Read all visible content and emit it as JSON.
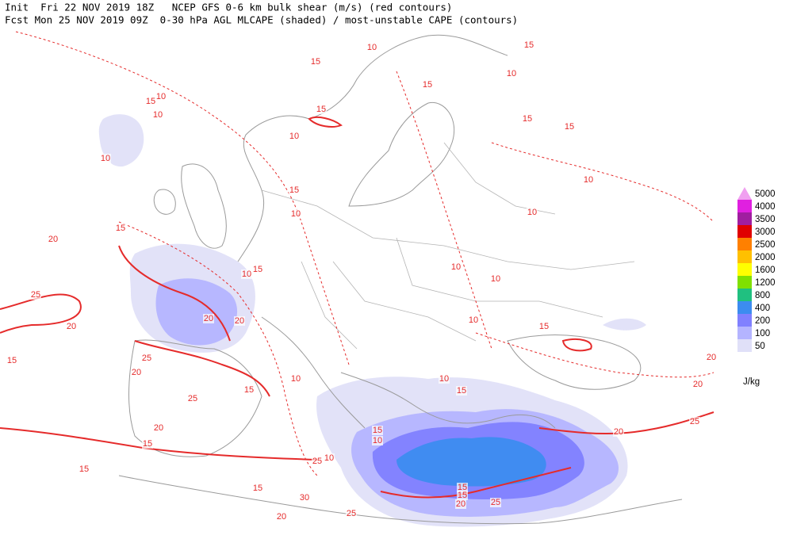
{
  "header": {
    "line1": "Init  Fri 22 NOV 2019 18Z   NCEP GFS 0-6 km bulk shear (m/s) (red contours)",
    "line2": "Fcst Mon 25 NOV 2019 09Z  0-30 hPa AGL MLCAPE (shaded) / most-unstable CAPE (contours)"
  },
  "legend": {
    "items": [
      {
        "label": "5000",
        "color": "#f0a0f0"
      },
      {
        "label": "4000",
        "color": "#e020e0"
      },
      {
        "label": "3500",
        "color": "#a01ea0"
      },
      {
        "label": "3000",
        "color": "#e00000"
      },
      {
        "label": "2500",
        "color": "#ff8000"
      },
      {
        "label": "2000",
        "color": "#ffc000"
      },
      {
        "label": "1600",
        "color": "#ffff00"
      },
      {
        "label": "1200",
        "color": "#80e000"
      },
      {
        "label": "800",
        "color": "#20c080"
      },
      {
        "label": "400",
        "color": "#3c8cf0"
      },
      {
        "label": "200",
        "color": "#8080ff"
      },
      {
        "label": "100",
        "color": "#b4b4ff"
      },
      {
        "label": "50",
        "color": "#e0e0f8"
      }
    ],
    "unit": "J/kg"
  },
  "contour_labels": [
    15,
    10,
    15,
    10,
    15,
    10,
    15,
    15,
    15,
    10,
    15,
    10,
    10,
    10,
    10,
    15,
    10,
    15,
    20,
    10,
    10,
    15,
    10,
    25,
    20,
    20,
    15,
    10,
    20,
    15,
    25,
    20,
    10,
    15,
    25,
    20,
    15,
    10,
    15,
    25,
    10,
    20,
    25,
    20,
    15,
    15,
    20,
    25,
    30,
    20,
    25,
    15,
    15,
    15,
    10,
    20
  ]
}
